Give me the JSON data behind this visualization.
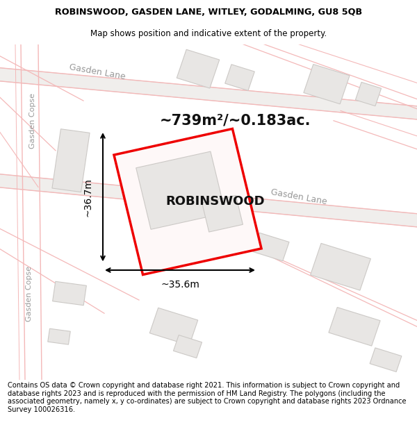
{
  "title_line1": "ROBINSWOOD, GASDEN LANE, WITLEY, GODALMING, GU8 5QB",
  "title_line2": "Map shows position and indicative extent of the property.",
  "area_text": "~739m²/~0.183ac.",
  "property_label": "ROBINSWOOD",
  "dim_width": "~35.6m",
  "dim_height": "~36.7m",
  "bg_color": "#ffffff",
  "map_bg": "#ffffff",
  "road_band_color": "#f0eeec",
  "road_band_edge": "#d8d5d2",
  "pink_road_color": "#f4b8b8",
  "building_fill": "#e8e6e4",
  "building_edge": "#ccc9c6",
  "red_outline_color": "#ee0000",
  "property_fill": "#fef8f8",
  "label_color": "#999999",
  "footer_text": "Contains OS data © Crown copyright and database right 2021. This information is subject to Crown copyright and database rights 2023 and is reproduced with the permission of HM Land Registry. The polygons (including the associated geometry, namely x, y co-ordinates) are subject to Crown copyright and database rights 2023 Ordnance Survey 100026316."
}
